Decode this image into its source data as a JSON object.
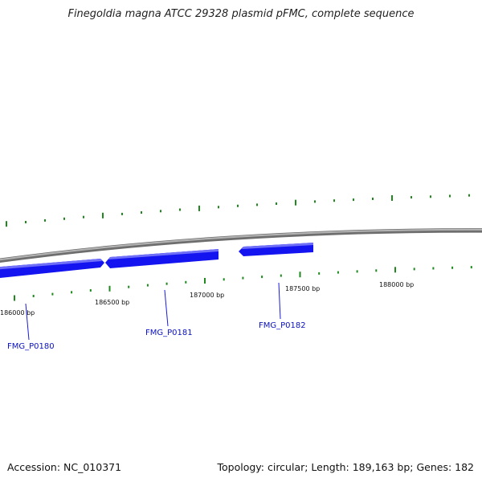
{
  "title": "Finegoldia magna ATCC 29328 plasmid pFMC, complete sequence",
  "footer": {
    "accession": "Accession: NC_010371",
    "summary": "Topology: circular; Length: 189,163 bp; Genes: 182"
  },
  "colors": {
    "backbone": "#8a8a8a",
    "gene_fill": "#1414f0",
    "gene_highlight": "#6f6ff8",
    "tick": "#1e8a1e",
    "label_line": "#1a1ad8"
  },
  "scale_labels": [
    "186000 bp",
    "186500 bp",
    "187000 bp",
    "187500 bp",
    "188000 bp"
  ],
  "genes": [
    {
      "name": "FMG_P0180",
      "strand": "+"
    },
    {
      "name": "FMG_P0181",
      "strand": "-"
    },
    {
      "name": "FMG_P0182",
      "strand": "-"
    }
  ]
}
